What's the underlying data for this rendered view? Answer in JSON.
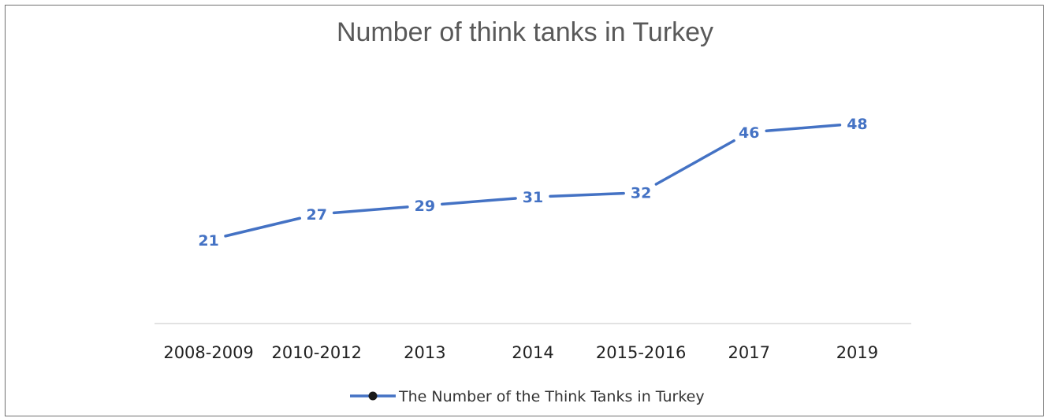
{
  "chart_data": {
    "type": "line",
    "title": "Number of think tanks in Turkey",
    "categories": [
      "2008-2009",
      "2010-2012",
      "2013",
      "2014",
      "2015-2016",
      "2017",
      "2019"
    ],
    "series": [
      {
        "name": "The Number of the Think Tanks in Turkey",
        "values": [
          21,
          27,
          29,
          31,
          32,
          46,
          48
        ],
        "color": "#4472c4"
      }
    ],
    "data_labels": true,
    "grid": false,
    "legend_position": "bottom",
    "xlabel": "",
    "ylabel": ""
  }
}
